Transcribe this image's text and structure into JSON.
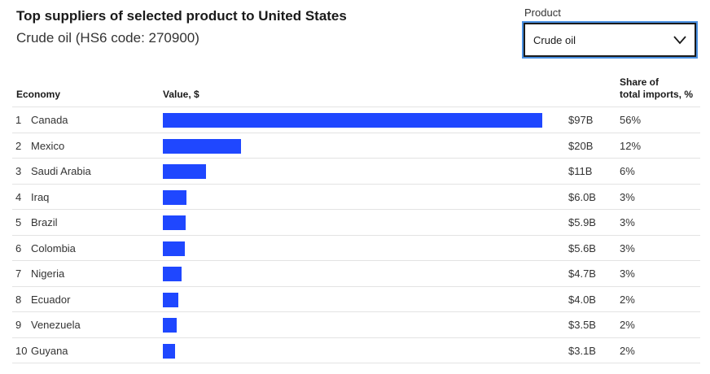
{
  "header": {
    "title": "Top suppliers of selected product to United States",
    "subtitle": "Crude oil (HS6 code: 270900)"
  },
  "product_select": {
    "label": "Product",
    "value": "Crude oil"
  },
  "columns": {
    "economy": "Economy",
    "value": "Value, $",
    "share_line1": "Share of",
    "share_line2": "total imports, %"
  },
  "colors": {
    "bar": "#1f47ff"
  },
  "chart_data": {
    "type": "bar",
    "orientation": "horizontal",
    "categories": [
      "Canada",
      "Mexico",
      "Saudi Arabia",
      "Iraq",
      "Brazil",
      "Colombia",
      "Nigeria",
      "Ecuador",
      "Venezuela",
      "Guyana"
    ],
    "ranks": [
      "1",
      "2",
      "3",
      "4",
      "5",
      "6",
      "7",
      "8",
      "9",
      "10"
    ],
    "values": [
      97,
      20,
      11,
      6.0,
      5.9,
      5.6,
      4.7,
      4.0,
      3.5,
      3.1
    ],
    "value_labels": [
      "$97B",
      "$20B",
      "$11B",
      "$6.0B",
      "$5.9B",
      "$5.6B",
      "$4.7B",
      "$4.0B",
      "$3.5B",
      "$3.1B"
    ],
    "share_labels": [
      "56%",
      "12%",
      "6%",
      "3%",
      "3%",
      "3%",
      "3%",
      "2%",
      "2%",
      "2%"
    ],
    "title": "Top suppliers of selected product to United States",
    "xlabel": "Value, $",
    "ylabel": "Economy",
    "xlim": [
      0,
      97
    ],
    "grid": false
  }
}
